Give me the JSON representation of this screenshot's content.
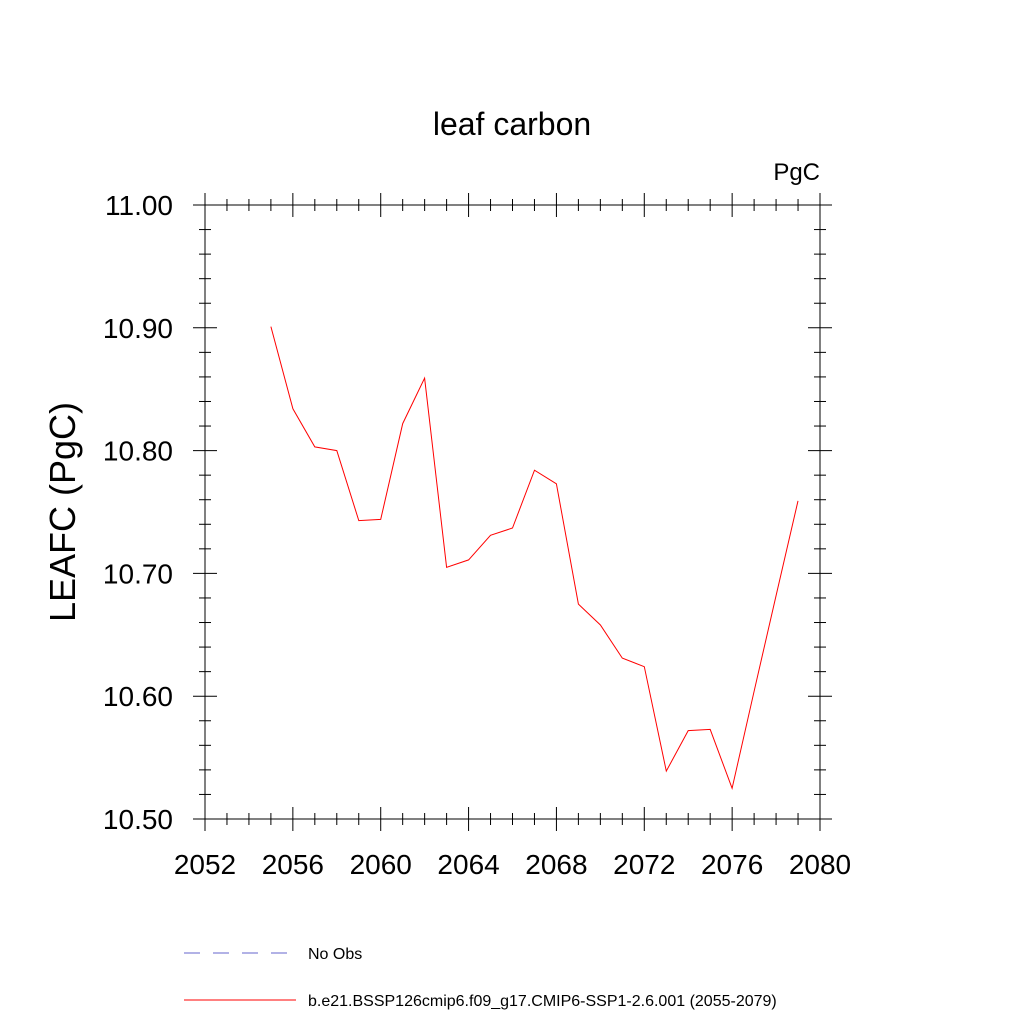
{
  "chart_data": {
    "type": "line",
    "title": "leaf carbon",
    "units_label": "PgC",
    "ylabel": "LEAFC  (PgC)",
    "xlabel": "",
    "xlim": [
      2052,
      2080
    ],
    "ylim": [
      10.5,
      11.0
    ],
    "x_ticks": [
      2052,
      2056,
      2060,
      2064,
      2068,
      2072,
      2076,
      2080
    ],
    "x_tick_labels": [
      "2052",
      "2056",
      "2060",
      "2064",
      "2068",
      "2072",
      "2076",
      "2080"
    ],
    "y_ticks": [
      10.5,
      10.6,
      10.7,
      10.8,
      10.9,
      11.0
    ],
    "y_tick_labels": [
      "10.50",
      "10.60",
      "10.70",
      "10.80",
      "10.90",
      "11.00"
    ],
    "grid": false,
    "legend_position": "bottom",
    "series": [
      {
        "name": "b.e21.BSSP126cmip6.f09_g17.CMIP6-SSP1-2.6.001 (2055-2079)",
        "color": "#ff0000",
        "style": "solid",
        "x": [
          2055,
          2056,
          2057,
          2058,
          2059,
          2060,
          2061,
          2062,
          2063,
          2064,
          2065,
          2066,
          2067,
          2068,
          2069,
          2070,
          2071,
          2072,
          2073,
          2074,
          2075,
          2076,
          2077,
          2078,
          2079
        ],
        "y": [
          10.901,
          10.834,
          10.803,
          10.8,
          10.743,
          10.744,
          10.822,
          10.859,
          10.705,
          10.711,
          10.731,
          10.737,
          10.784,
          10.773,
          10.675,
          10.658,
          10.631,
          10.624,
          10.539,
          10.572,
          10.573,
          10.525,
          10.604,
          10.682,
          10.759
        ]
      }
    ],
    "legend": [
      {
        "label": "No Obs",
        "color": "#6666cc",
        "style": "dashed"
      },
      {
        "label": "b.e21.BSSP126cmip6.f09_g17.CMIP6-SSP1-2.6.001 (2055-2079)",
        "color": "#ff0000",
        "style": "solid"
      }
    ]
  }
}
